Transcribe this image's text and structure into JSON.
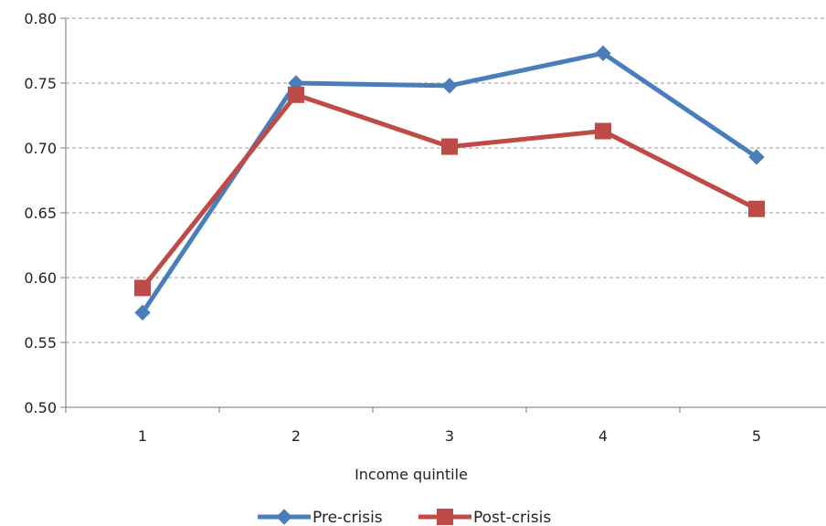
{
  "chart_data": {
    "type": "line",
    "title": "",
    "xlabel": "Income quintile",
    "ylabel": "",
    "categories": [
      "1",
      "2",
      "3",
      "4",
      "5"
    ],
    "ylim": [
      0.5,
      0.8
    ],
    "yticks": [
      "0.50",
      "0.55",
      "0.60",
      "0.65",
      "0.70",
      "0.75",
      "0.80"
    ],
    "grid": "horizontal dashed",
    "legend_position": "bottom",
    "series": [
      {
        "name": "Pre-crisis",
        "color": "#4a7ebb",
        "marker": "diamond",
        "values": [
          0.573,
          0.75,
          0.748,
          0.773,
          0.693
        ]
      },
      {
        "name": "Post-crisis",
        "color": "#be4b48",
        "marker": "square",
        "values": [
          0.592,
          0.741,
          0.701,
          0.713,
          0.653
        ]
      }
    ]
  }
}
